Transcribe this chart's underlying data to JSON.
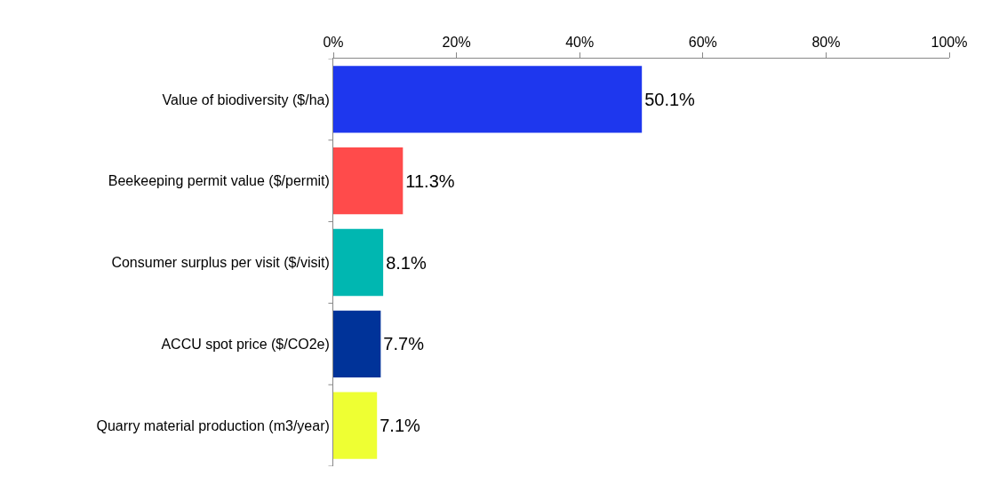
{
  "chart_data": {
    "type": "bar",
    "orientation": "horizontal",
    "categories": [
      "Value of biodiversity ($/ha)",
      "Beekeeping permit value ($/permit)",
      "Consumer surplus per visit ($/visit)",
      "ACCU spot price ($/CO2e)",
      "Quarry material production (m3/year)"
    ],
    "values": [
      50.1,
      11.3,
      8.1,
      7.7,
      7.1
    ],
    "colors": [
      "#1e37ee",
      "#ff4b4b",
      "#00b7b1",
      "#003399",
      "#eeff33"
    ],
    "value_labels": [
      "50.1%",
      "11.3%",
      "8.1%",
      "7.7%",
      "7.1%"
    ],
    "xlim": [
      0,
      100
    ],
    "xticks": [
      {
        "value": 0,
        "label": "0%"
      },
      {
        "value": 20,
        "label": "20%"
      },
      {
        "value": 40,
        "label": "40%"
      },
      {
        "value": 60,
        "label": "60%"
      },
      {
        "value": 80,
        "label": "80%"
      },
      {
        "value": 100,
        "label": "100%"
      }
    ],
    "grid": false,
    "legend": false
  }
}
